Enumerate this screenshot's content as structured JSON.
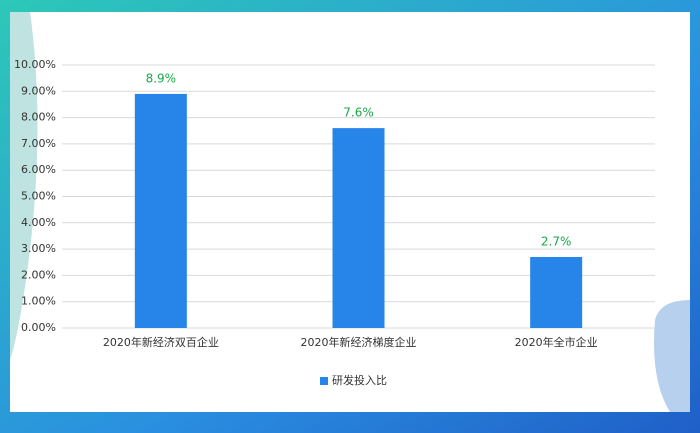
{
  "chart_data": {
    "type": "bar",
    "categories": [
      "2020年新经济双百企业",
      "2020年新经济梯度企业",
      "2020年全市企业"
    ],
    "series": [
      {
        "name": "研发投入比",
        "color": "#2784e8",
        "values": [
          8.9,
          7.6,
          2.7
        ],
        "value_labels": [
          "8.9%",
          "7.6%",
          "2.7%"
        ]
      }
    ],
    "ylim": [
      0,
      10
    ],
    "yticks": [
      {
        "value": 0,
        "label": "0.00%"
      },
      {
        "value": 1,
        "label": "1.00%"
      },
      {
        "value": 2,
        "label": "2.00%"
      },
      {
        "value": 3,
        "label": "3.00%"
      },
      {
        "value": 4,
        "label": "4.00%"
      },
      {
        "value": 5,
        "label": "5.00%"
      },
      {
        "value": 6,
        "label": "6.00%"
      },
      {
        "value": 7,
        "label": "7.00%"
      },
      {
        "value": 8,
        "label": "8.00%"
      },
      {
        "value": 9,
        "label": "9.00%"
      },
      {
        "value": 10,
        "label": "10.00%"
      }
    ],
    "grid": true,
    "legend": "bottom",
    "value_label_color": "#1aa84a"
  }
}
